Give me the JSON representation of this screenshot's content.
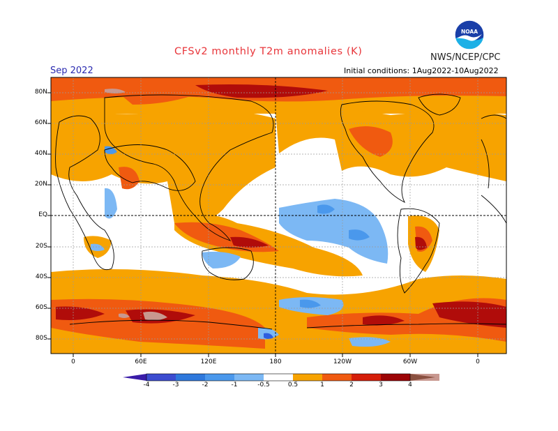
{
  "header": {
    "title": "CFSv2 monthly T2m anomalies (K)",
    "agency": "NWS/NCEP/CPC",
    "month": "Sep 2022",
    "initial_conditions": "Initial conditions: 1Aug2022-10Aug2022"
  },
  "logo": {
    "icon": "noaa-logo-icon",
    "text": "NOAA"
  },
  "axes": {
    "lat_labels": [
      "80N",
      "60N",
      "40N",
      "20N",
      "EQ",
      "20S",
      "40S",
      "60S",
      "80S"
    ],
    "lon_labels": [
      "0",
      "60E",
      "120E",
      "180",
      "120W",
      "60W",
      "0"
    ]
  },
  "colorbar": {
    "labels": [
      "-4",
      "-3",
      "-2",
      "-1",
      "-0.5",
      "0.5",
      "1",
      "2",
      "3",
      "4"
    ],
    "colors": [
      "#3a1ca8",
      "#3c4cd0",
      "#2e78dc",
      "#4a98ec",
      "#7cb8f4",
      "#ffffff",
      "#f7a300",
      "#f05a10",
      "#d51e0a",
      "#9c0406",
      "#c89890",
      "#8a5040"
    ]
  }
}
